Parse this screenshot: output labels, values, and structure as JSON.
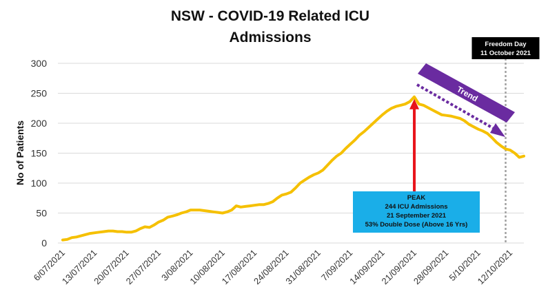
{
  "chart_data": {
    "type": "line",
    "title_line1": "NSW - COVID-19 Related ICU",
    "title_line2": "Admissions",
    "ylabel": "No of Patients",
    "xlabel": "",
    "ylim": [
      0,
      300
    ],
    "yticks": [
      0,
      50,
      100,
      150,
      200,
      250,
      300
    ],
    "start_date": "2021-07-06",
    "x_tick_labels": [
      "6/07/2021",
      "13/07/2021",
      "20/07/2021",
      "27/07/2021",
      "3/08/2021",
      "10/08/2021",
      "17/08/2021",
      "24/08/2021",
      "31/08/2021",
      "7/09/2021",
      "14/09/2021",
      "21/09/2021",
      "28/09/2021",
      "5/10/2021",
      "12/10/2021"
    ],
    "grid": "horizontal",
    "series": [
      {
        "name": "",
        "color": "#f5c000",
        "x": [
          "2021-07-06",
          "2021-07-07",
          "2021-07-08",
          "2021-07-09",
          "2021-07-10",
          "2021-07-11",
          "2021-07-12",
          "2021-07-13",
          "2021-07-14",
          "2021-07-15",
          "2021-07-16",
          "2021-07-17",
          "2021-07-18",
          "2021-07-19",
          "2021-07-20",
          "2021-07-21",
          "2021-07-22",
          "2021-07-23",
          "2021-07-24",
          "2021-07-25",
          "2021-07-26",
          "2021-07-27",
          "2021-07-28",
          "2021-07-29",
          "2021-07-30",
          "2021-07-31",
          "2021-08-01",
          "2021-08-02",
          "2021-08-03",
          "2021-08-04",
          "2021-08-05",
          "2021-08-06",
          "2021-08-07",
          "2021-08-08",
          "2021-08-09",
          "2021-08-10",
          "2021-08-11",
          "2021-08-12",
          "2021-08-13",
          "2021-08-14",
          "2021-08-15",
          "2021-08-16",
          "2021-08-17",
          "2021-08-18",
          "2021-08-19",
          "2021-08-20",
          "2021-08-21",
          "2021-08-22",
          "2021-08-23",
          "2021-08-24",
          "2021-08-25",
          "2021-08-26",
          "2021-08-27",
          "2021-08-28",
          "2021-08-29",
          "2021-08-30",
          "2021-08-31",
          "2021-09-01",
          "2021-09-02",
          "2021-09-03",
          "2021-09-04",
          "2021-09-05",
          "2021-09-06",
          "2021-09-07",
          "2021-09-08",
          "2021-09-09",
          "2021-09-10",
          "2021-09-11",
          "2021-09-12",
          "2021-09-13",
          "2021-09-14",
          "2021-09-15",
          "2021-09-16",
          "2021-09-17",
          "2021-09-18",
          "2021-09-19",
          "2021-09-20",
          "2021-09-21",
          "2021-09-22",
          "2021-09-23",
          "2021-09-24",
          "2021-09-25",
          "2021-09-26",
          "2021-09-27",
          "2021-09-28",
          "2021-09-29",
          "2021-09-30",
          "2021-10-01",
          "2021-10-02",
          "2021-10-03",
          "2021-10-04",
          "2021-10-05",
          "2021-10-06",
          "2021-10-07",
          "2021-10-08",
          "2021-10-09",
          "2021-10-10",
          "2021-10-11",
          "2021-10-12",
          "2021-10-13",
          "2021-10-14",
          "2021-10-15"
        ],
        "values": [
          5,
          6,
          9,
          10,
          12,
          14,
          16,
          17,
          18,
          19,
          20,
          20,
          19,
          19,
          18,
          18,
          20,
          24,
          27,
          26,
          30,
          35,
          38,
          43,
          45,
          47,
          50,
          52,
          55,
          55,
          55,
          54,
          53,
          52,
          51,
          50,
          52,
          55,
          62,
          60,
          61,
          62,
          63,
          64,
          64,
          66,
          69,
          75,
          80,
          82,
          85,
          92,
          100,
          105,
          110,
          114,
          117,
          122,
          130,
          138,
          145,
          150,
          158,
          165,
          172,
          180,
          186,
          193,
          200,
          207,
          214,
          220,
          225,
          228,
          230,
          232,
          236,
          244,
          232,
          230,
          226,
          222,
          218,
          214,
          213,
          212,
          210,
          208,
          204,
          198,
          194,
          190,
          187,
          183,
          176,
          168,
          162,
          157,
          155,
          150,
          143,
          145
        ]
      }
    ],
    "annotations": {
      "freedom_day": {
        "date": "2021-10-11",
        "label_line1": "Freedom Day",
        "label_line2": "11 October 2021"
      },
      "peak": {
        "date": "2021-09-21",
        "value": 244,
        "lines": [
          "PEAK",
          "244 ICU Admissions",
          "21 September 2021",
          "53% Double Dose (Above 16 Yrs)"
        ]
      },
      "trend": {
        "label": "Trend"
      }
    },
    "colors": {
      "line": "#f5c000",
      "peak_arrow": "#e8141b",
      "peak_box": "#1aaee8",
      "trend_band": "#6a2ba0",
      "freedom_box": "#000000",
      "freedom_line": "#a0a0a0",
      "grid": "#d9d9d9"
    }
  }
}
